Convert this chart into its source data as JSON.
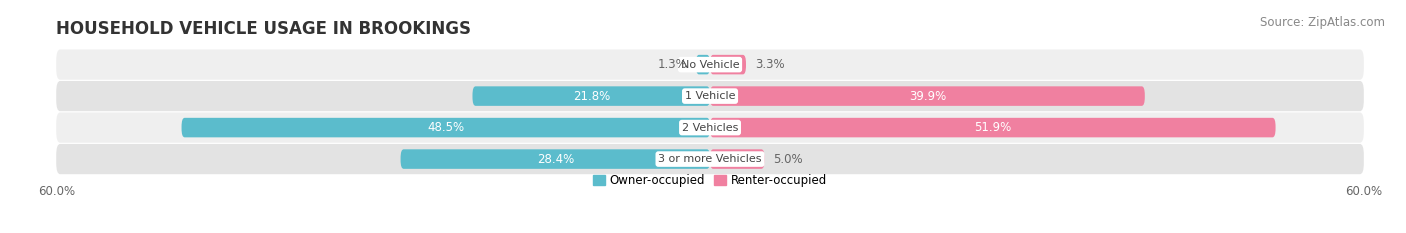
{
  "title": "HOUSEHOLD VEHICLE USAGE IN BROOKINGS",
  "source": "Source: ZipAtlas.com",
  "categories": [
    "No Vehicle",
    "1 Vehicle",
    "2 Vehicles",
    "3 or more Vehicles"
  ],
  "owner_values": [
    1.3,
    21.8,
    48.5,
    28.4
  ],
  "renter_values": [
    3.3,
    39.9,
    51.9,
    5.0
  ],
  "owner_color": "#5bbccc",
  "renter_color": "#f080a0",
  "owner_label": "Owner-occupied",
  "renter_label": "Renter-occupied",
  "xlim": 60.0,
  "x_tick_label": "60.0%",
  "row_bg": "#efefef",
  "row_bg2": "#e3e3e3",
  "bar_height": 0.62,
  "title_fontsize": 12,
  "source_fontsize": 8.5,
  "category_fontsize": 8,
  "pct_fontsize": 8.5
}
